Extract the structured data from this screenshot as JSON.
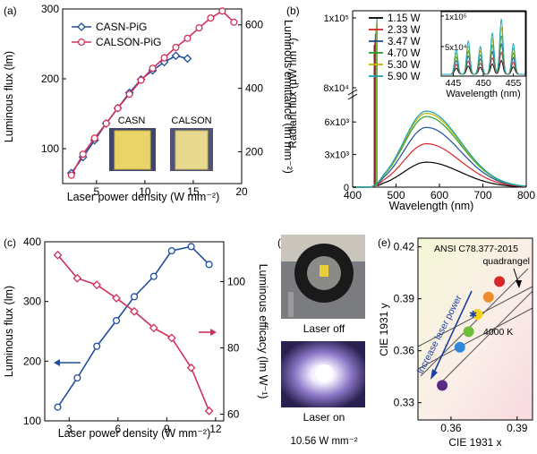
{
  "colors": {
    "blue": "#1f4e9c",
    "red": "#d0305a",
    "axis": "#000000"
  },
  "panels": {
    "a": {
      "tag": "(a)",
      "photo_labels": [
        "CASN",
        "CALSON"
      ]
    },
    "b": {
      "tag": "(b)"
    },
    "c": {
      "tag": "(c)"
    },
    "d": {
      "tag": "(d)",
      "label_off": "Laser off",
      "label_on": "Laser on",
      "caption": "10.56 W mm⁻²"
    },
    "e": {
      "tag": "(e)",
      "annotations": {
        "ansi": "ANSI C78.377-2015",
        "quad": "quadrangel",
        "cct": "4000 K",
        "arrow": "increase laser power"
      }
    }
  },
  "chart_data": [
    {
      "id": "a",
      "type": "line",
      "xlabel": "Laser power density (W mm⁻²)",
      "ylabel": "Luminous flux (lm)",
      "y2label": "Luminous emittance (lm mm⁻²)",
      "xlim": [
        1.5,
        20
      ],
      "ylim": [
        50,
        300
      ],
      "y2lim": [
        100,
        650
      ],
      "xticks": [
        5,
        10,
        15,
        20
      ],
      "yticks": [
        100,
        200,
        300
      ],
      "y2ticks": [
        200,
        400,
        600
      ],
      "legend": "top-left",
      "series": [
        {
          "name": "CASN-PiG",
          "color": "#1f4e9c",
          "marker": "diamond",
          "x": [
            2.4,
            3.6,
            4.8,
            6.0,
            7.2,
            8.4,
            9.6,
            10.8,
            12.0,
            13.2,
            14.4
          ],
          "y": [
            65,
            88,
            112,
            136,
            158,
            180,
            199,
            212,
            224,
            233,
            229
          ]
        },
        {
          "name": "CALSON-PiG",
          "color": "#d0305a",
          "marker": "circle",
          "x": [
            2.4,
            3.6,
            4.8,
            6.0,
            7.2,
            8.4,
            9.6,
            10.8,
            12.0,
            13.2,
            14.4,
            15.6,
            16.8,
            18.0,
            19.2
          ],
          "y": [
            62,
            92,
            115,
            136,
            158,
            178,
            198,
            215,
            230,
            245,
            258,
            273,
            287,
            297,
            281
          ]
        }
      ]
    },
    {
      "id": "b",
      "type": "line",
      "xlabel": "Wavelength (nm)",
      "ylabel": "Radiant flux (μW nm⁻¹)",
      "xlim": [
        400,
        800
      ],
      "xticks": [
        400,
        500,
        600,
        700,
        800
      ],
      "yticks_lower": [
        "0",
        "3x10³",
        "6x10³"
      ],
      "yticks_upper": [
        "8x10⁴",
        "1x10⁵"
      ],
      "legend": "top-left",
      "series": [
        {
          "name": "1.15 W",
          "color": "#000000",
          "peak": 2300
        },
        {
          "name": "2.33 W",
          "color": "#d62728",
          "peak": 4000
        },
        {
          "name": "3.47 W",
          "color": "#1f4e9c",
          "peak": 5500
        },
        {
          "name": "4.70 W",
          "color": "#2ca02c",
          "peak": 6500
        },
        {
          "name": "5.30 W",
          "color": "#c8b400",
          "peak": 6800
        },
        {
          "name": "5.90 W",
          "color": "#17a2b8",
          "peak": 7000
        }
      ],
      "inset": {
        "xlabel": "Wavelength (nm)",
        "xticks": [
          445,
          450,
          455
        ],
        "xlim": [
          443,
          457
        ],
        "yticks": [
          "5x10⁴",
          "1x10⁵"
        ]
      }
    },
    {
      "id": "c",
      "type": "line",
      "xlabel": "Laser power density (W mm⁻²)",
      "ylabel": "Luminous flux (lm)",
      "y2label": "Luminous efficacy (lm W⁻¹)",
      "xlim": [
        1.5,
        12.5
      ],
      "ylim": [
        100,
        400
      ],
      "y2lim": [
        58,
        112
      ],
      "xticks": [
        3,
        6,
        9,
        12
      ],
      "yticks": [
        100,
        200,
        300,
        400
      ],
      "y2ticks": [
        60,
        80,
        100
      ],
      "series": [
        {
          "name": "Luminous flux",
          "axis": "left",
          "color": "#1f4e9c",
          "x": [
            2.3,
            3.5,
            4.7,
            5.9,
            7.0,
            8.2,
            9.3,
            10.5,
            11.6
          ],
          "y": [
            123,
            172,
            225,
            268,
            308,
            342,
            385,
            392,
            362
          ]
        },
        {
          "name": "Luminous efficacy",
          "axis": "right",
          "color": "#d0305a",
          "x": [
            2.3,
            3.5,
            4.7,
            5.9,
            7.0,
            8.2,
            9.3,
            10.5,
            11.6
          ],
          "y": [
            108,
            101,
            99,
            95,
            91,
            86,
            83,
            74,
            61
          ]
        }
      ]
    },
    {
      "id": "e",
      "type": "scatter",
      "xlabel": "CIE 1931 x",
      "ylabel": "CIE 1931 y",
      "xlim": [
        0.345,
        0.397
      ],
      "ylim": [
        0.32,
        0.425
      ],
      "xticks": [
        0.36,
        0.39
      ],
      "xtick_labels": [
        "0.36",
        "0.39"
      ],
      "yticks": [
        0.33,
        0.36,
        0.39,
        0.42
      ],
      "ytick_labels": [
        "0.33",
        "0.36",
        "0.39",
        "0.42"
      ],
      "points": [
        {
          "x": 0.356,
          "y": 0.34,
          "color": "#5b2a86"
        },
        {
          "x": 0.364,
          "y": 0.362,
          "color": "#2e8ad8"
        },
        {
          "x": 0.368,
          "y": 0.371,
          "color": "#6fbf3c"
        },
        {
          "x": 0.372,
          "y": 0.381,
          "color": "#f2d21a"
        },
        {
          "x": 0.377,
          "y": 0.391,
          "color": "#f08b2b"
        },
        {
          "x": 0.382,
          "y": 0.4,
          "color": "#d62828"
        }
      ]
    }
  ]
}
